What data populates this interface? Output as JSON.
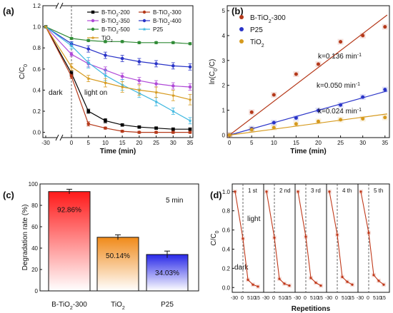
{
  "chart_data": [
    {
      "panel_label": "(a)",
      "type": "line",
      "xlabel": "Time (min)",
      "ylabel": "C/C0",
      "x_ticks": [
        -30,
        0,
        5,
        10,
        15,
        20,
        25,
        30,
        35
      ],
      "y_ticks": [
        0.0,
        0.2,
        0.4,
        0.6,
        0.8,
        1.0,
        1.2
      ],
      "ylim": [
        -0.05,
        1.2
      ],
      "x_break_after": -30,
      "annotations": [
        "dark",
        "light on"
      ],
      "x": [
        -30,
        0,
        5,
        10,
        15,
        20,
        25,
        30,
        35
      ],
      "legend_placement": "top, two columns",
      "series": [
        {
          "name": "B-TiO2-200",
          "color": "#000000",
          "marker": "square",
          "values": [
            1.0,
            0.56,
            0.2,
            0.11,
            0.07,
            0.05,
            0.04,
            0.03,
            0.03
          ],
          "errors": [
            0,
            0.02,
            0.02,
            0.02,
            0.01,
            0.01,
            0.01,
            0.01,
            0.01
          ]
        },
        {
          "name": "B-TiO2-300",
          "color": "#b5391a",
          "marker": "circle",
          "values": [
            1.0,
            0.53,
            0.08,
            0.04,
            0.01,
            0.0,
            0.0,
            0.0,
            0.0
          ],
          "errors": [
            0,
            0.02,
            0.02,
            0.01,
            0.01,
            0.01,
            0.01,
            0.01,
            0.01
          ]
        },
        {
          "name": "B-TiO2-350",
          "color": "#b04ad8",
          "marker": "circle",
          "values": [
            1.0,
            0.74,
            0.65,
            0.59,
            0.53,
            0.49,
            0.46,
            0.44,
            0.43
          ],
          "errors": [
            0,
            0.02,
            0.03,
            0.03,
            0.03,
            0.03,
            0.03,
            0.03,
            0.03
          ]
        },
        {
          "name": "B-TiO2-400",
          "color": "#2a34c8",
          "marker": "circle",
          "values": [
            1.0,
            0.84,
            0.79,
            0.73,
            0.7,
            0.67,
            0.65,
            0.63,
            0.62
          ],
          "errors": [
            0,
            0.02,
            0.03,
            0.03,
            0.03,
            0.03,
            0.03,
            0.03,
            0.03
          ]
        },
        {
          "name": "B-TiO2-500",
          "color": "#2f8a35",
          "marker": "circle",
          "values": [
            1.0,
            0.89,
            0.87,
            0.86,
            0.86,
            0.85,
            0.85,
            0.85,
            0.84
          ],
          "errors": [
            0,
            0.01,
            0.01,
            0.01,
            0.01,
            0.01,
            0.01,
            0.01,
            0.01
          ]
        },
        {
          "name": "P25",
          "color": "#3fb8e0",
          "marker": "star",
          "values": [
            1.0,
            0.82,
            0.66,
            0.54,
            0.45,
            0.37,
            0.29,
            0.2,
            0.11
          ],
          "errors": [
            0,
            0.03,
            0.05,
            0.05,
            0.05,
            0.04,
            0.04,
            0.03,
            0.03
          ]
        },
        {
          "name": "TiO2",
          "color": "#d69a1e",
          "marker": "star",
          "values": [
            1.0,
            0.62,
            0.51,
            0.47,
            0.43,
            0.4,
            0.38,
            0.35,
            0.31
          ],
          "errors": [
            0,
            0.03,
            0.03,
            0.04,
            0.05,
            0.05,
            0.05,
            0.05,
            0.05
          ]
        }
      ]
    },
    {
      "panel_label": "(b)",
      "type": "scatter",
      "xlabel": "Time (min)",
      "ylabel": "ln(C0/C)",
      "x_ticks": [
        0,
        5,
        10,
        15,
        20,
        25,
        30,
        35
      ],
      "y_ticks": [
        0,
        1,
        2,
        3,
        4,
        5
      ],
      "xlim": [
        -0.5,
        36
      ],
      "ylim": [
        -0.1,
        5.2
      ],
      "x": [
        0,
        5,
        10,
        15,
        20,
        25,
        30,
        35
      ],
      "legend_placement": "top-left",
      "series": [
        {
          "name": "B-TiO2-300",
          "color": "#b5391a",
          "values": [
            0,
            0.92,
            1.62,
            2.45,
            2.85,
            3.75,
            4.0,
            4.35
          ],
          "rate_label": "k=0.136 min-1",
          "slope": 0.136
        },
        {
          "name": "P25",
          "color": "#2a34c8",
          "values": [
            0,
            0.26,
            0.5,
            0.69,
            0.99,
            1.21,
            1.53,
            1.83
          ],
          "rate_label": "k=0.050 min-1",
          "slope": 0.05
        },
        {
          "name": "TiO2",
          "color": "#d69a1e",
          "values": [
            0,
            0.22,
            0.3,
            0.45,
            0.55,
            0.62,
            0.66,
            0.71
          ],
          "rate_label": "k=0.024 min-1",
          "slope": 0.024
        }
      ]
    },
    {
      "panel_label": "(c)",
      "type": "bar",
      "ylabel": "Degradation rate (%)",
      "annotation": "5 min",
      "y_ticks": [
        0,
        20,
        40,
        60,
        80,
        100
      ],
      "ylim": [
        0,
        100
      ],
      "categories": [
        "B-TiO2-300",
        "TiO2",
        "P25"
      ],
      "values": [
        92.86,
        50.14,
        34.03
      ],
      "errors": [
        2.2,
        2.3,
        3.2
      ],
      "value_labels": [
        "92.86%",
        "50.14%",
        "34.03%"
      ],
      "colors": [
        "#ff1a1a",
        "#f08a1a",
        "#2727e8"
      ]
    },
    {
      "panel_label": "(d)",
      "type": "line",
      "xlabel": "Repetitions",
      "ylabel": "C/C0",
      "y_ticks": [
        0.0,
        0.2,
        0.4,
        0.6,
        0.8,
        1.0
      ],
      "ylim": [
        -0.05,
        1.08
      ],
      "cycle_tick_labels": [
        "-30",
        "0",
        "5",
        "10",
        "15"
      ],
      "cycles": [
        "1 st",
        "2 nd",
        "3 rd",
        "4 th",
        "5 th"
      ],
      "annotations": [
        "light",
        "dark"
      ],
      "color": "#c0391a",
      "cycle_x": [
        -30,
        0,
        5,
        10,
        15
      ],
      "cycle_values": [
        [
          1.0,
          0.51,
          0.08,
          0.03,
          0.01
        ],
        [
          1.0,
          0.52,
          0.09,
          0.04,
          0.02
        ],
        [
          1.0,
          0.53,
          0.1,
          0.05,
          0.02
        ],
        [
          1.0,
          0.55,
          0.11,
          0.06,
          0.03
        ],
        [
          1.0,
          0.57,
          0.13,
          0.07,
          0.03
        ]
      ]
    }
  ]
}
